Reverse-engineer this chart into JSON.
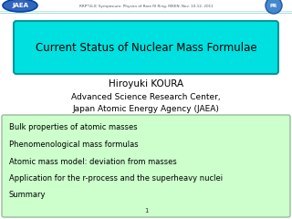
{
  "title": "Current Status of Nuclear Mass Formulae",
  "title_box_color": "#00E0E0",
  "title_box_edge_color": "#009999",
  "author_line1": "Hiroyuki KOURA",
  "author_line2": "Advanced Science Research Center,",
  "author_line3": "Japan Atomic Energy Agency (JAEA)",
  "header_text": "RRP*ULIC Symposium: Physics of Rare RI Ring, RIKEN, Nov. 10-12, 2011",
  "bullet_box_color": "#CCFFCC",
  "bullet_box_edge_color": "#99BB99",
  "bullets": [
    "Bulk properties of atomic masses",
    "Phenomenological mass formulas",
    "Atomic mass model: deviation from masses",
    "Application for the r-process and the superheavy nuclei",
    "Summary"
  ],
  "page_number": "1",
  "bg_color": "#FFFFFF",
  "jaea_label": "JAEA",
  "jaea_color": "#3366BB",
  "jaea_edge": "#0044AA"
}
